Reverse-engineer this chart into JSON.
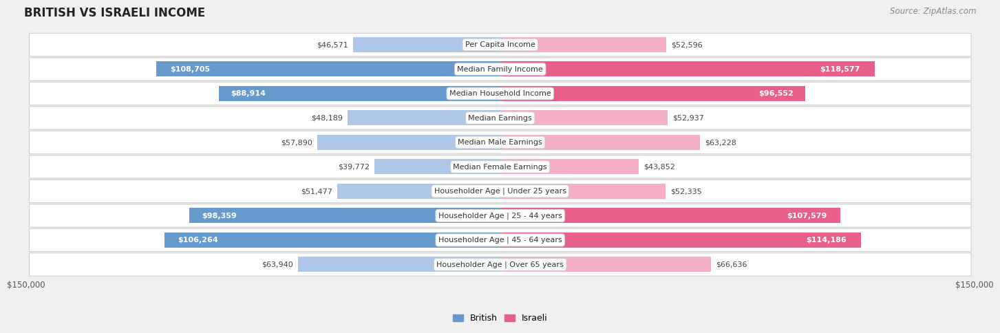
{
  "title": "BRITISH VS ISRAELI INCOME",
  "source": "Source: ZipAtlas.com",
  "categories": [
    "Per Capita Income",
    "Median Family Income",
    "Median Household Income",
    "Median Earnings",
    "Median Male Earnings",
    "Median Female Earnings",
    "Householder Age | Under 25 years",
    "Householder Age | 25 - 44 years",
    "Householder Age | 45 - 64 years",
    "Householder Age | Over 65 years"
  ],
  "british_values": [
    46571,
    108705,
    88914,
    48189,
    57890,
    39772,
    51477,
    98359,
    106264,
    63940
  ],
  "israeli_values": [
    52596,
    118577,
    96552,
    52937,
    63228,
    43852,
    52335,
    107579,
    114186,
    66636
  ],
  "british_color_light": "#aec6e8",
  "british_color_dark": "#6699cc",
  "israeli_color_light": "#f4aec8",
  "israeli_color_dark": "#e8608a",
  "british_label": "British",
  "israeli_label": "Israeli",
  "max_value": 150000,
  "background_color": "#f0f0f0",
  "row_color": "#ffffff",
  "title_fontsize": 12,
  "source_fontsize": 8.5,
  "bar_label_fontsize": 8,
  "category_fontsize": 8,
  "axis_fontsize": 8.5,
  "threshold": 70000
}
